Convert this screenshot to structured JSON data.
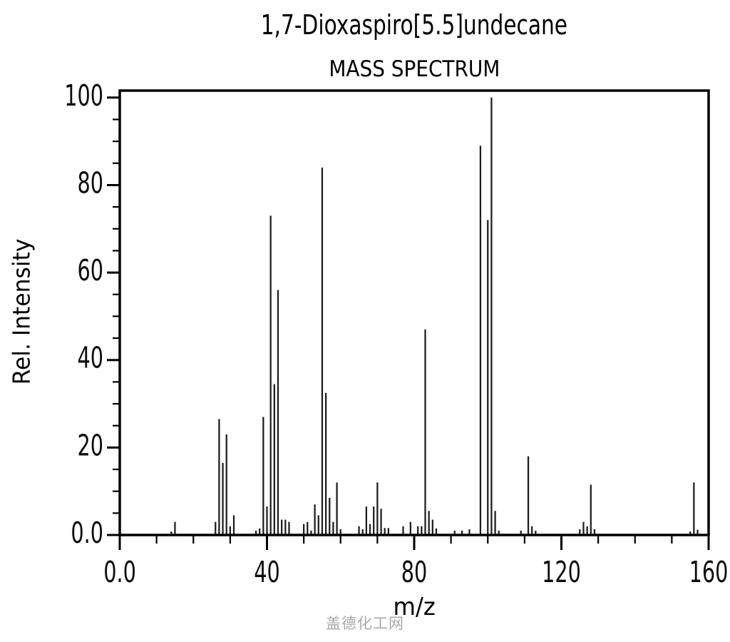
{
  "title": "1,7-Dioxaspiro[5.5]undecane",
  "subtitle": "MASS SPECTRUM",
  "watermark": {
    "text": "盖德化工网",
    "color": "#a9a9a9"
  },
  "chart_data": {
    "type": "bar",
    "title": "1,7-Dioxaspiro[5.5]undecane",
    "subtitle": "MASS SPECTRUM",
    "xlabel": "m/z",
    "ylabel": "Rel. Intensity",
    "xlim": [
      0,
      160
    ],
    "ylim": [
      0,
      101.6
    ],
    "grid": false,
    "legend": null,
    "frame": "full-box",
    "bar_color": "#1c1c1c",
    "axis_color": "#000000",
    "x_major_ticks": [
      0,
      40,
      80,
      120,
      160
    ],
    "x_major_labels": [
      "0.0",
      "40",
      "80",
      "120",
      "160"
    ],
    "x_minor_step": 10,
    "y_major_ticks": [
      0,
      20,
      40,
      60,
      80,
      100
    ],
    "y_major_labels": [
      "0.0",
      "20",
      "40",
      "60",
      "80",
      "100"
    ],
    "y_minor_step": 5,
    "peaks": [
      [
        14,
        0.8
      ],
      [
        15,
        3
      ],
      [
        26,
        3
      ],
      [
        27,
        26.5
      ],
      [
        28,
        16.5
      ],
      [
        29,
        23
      ],
      [
        30,
        2
      ],
      [
        31,
        4.5
      ],
      [
        37,
        1
      ],
      [
        38,
        1.5
      ],
      [
        39,
        27
      ],
      [
        40,
        6.5
      ],
      [
        41,
        73
      ],
      [
        42,
        34.5
      ],
      [
        43,
        56
      ],
      [
        44,
        3.5
      ],
      [
        45,
        3.5
      ],
      [
        46,
        3
      ],
      [
        50,
        2.5
      ],
      [
        51,
        3
      ],
      [
        52,
        1
      ],
      [
        53,
        7
      ],
      [
        54,
        4.5
      ],
      [
        55,
        84
      ],
      [
        56,
        32.5
      ],
      [
        57,
        8.5
      ],
      [
        58,
        3
      ],
      [
        59,
        12
      ],
      [
        60,
        1.3
      ],
      [
        65,
        2
      ],
      [
        66,
        1.3
      ],
      [
        67,
        6.5
      ],
      [
        68,
        2.5
      ],
      [
        69,
        6.5
      ],
      [
        70,
        12
      ],
      [
        71,
        6
      ],
      [
        72,
        1.6
      ],
      [
        73,
        1.6
      ],
      [
        77,
        2
      ],
      [
        79,
        3
      ],
      [
        81,
        2
      ],
      [
        82,
        2
      ],
      [
        83,
        47
      ],
      [
        84,
        5.5
      ],
      [
        85,
        3.5
      ],
      [
        86,
        1.5
      ],
      [
        91,
        1
      ],
      [
        93,
        1
      ],
      [
        95,
        1.3
      ],
      [
        98,
        89
      ],
      [
        100,
        72
      ],
      [
        101,
        100
      ],
      [
        102,
        5.5
      ],
      [
        103,
        1
      ],
      [
        109,
        1
      ],
      [
        111,
        18
      ],
      [
        112,
        2
      ],
      [
        113,
        1
      ],
      [
        125,
        1.3
      ],
      [
        126,
        3
      ],
      [
        127,
        2
      ],
      [
        128,
        11.5
      ],
      [
        129,
        1.3
      ],
      [
        155,
        0.8
      ],
      [
        156,
        12
      ],
      [
        157,
        1.2
      ]
    ]
  }
}
